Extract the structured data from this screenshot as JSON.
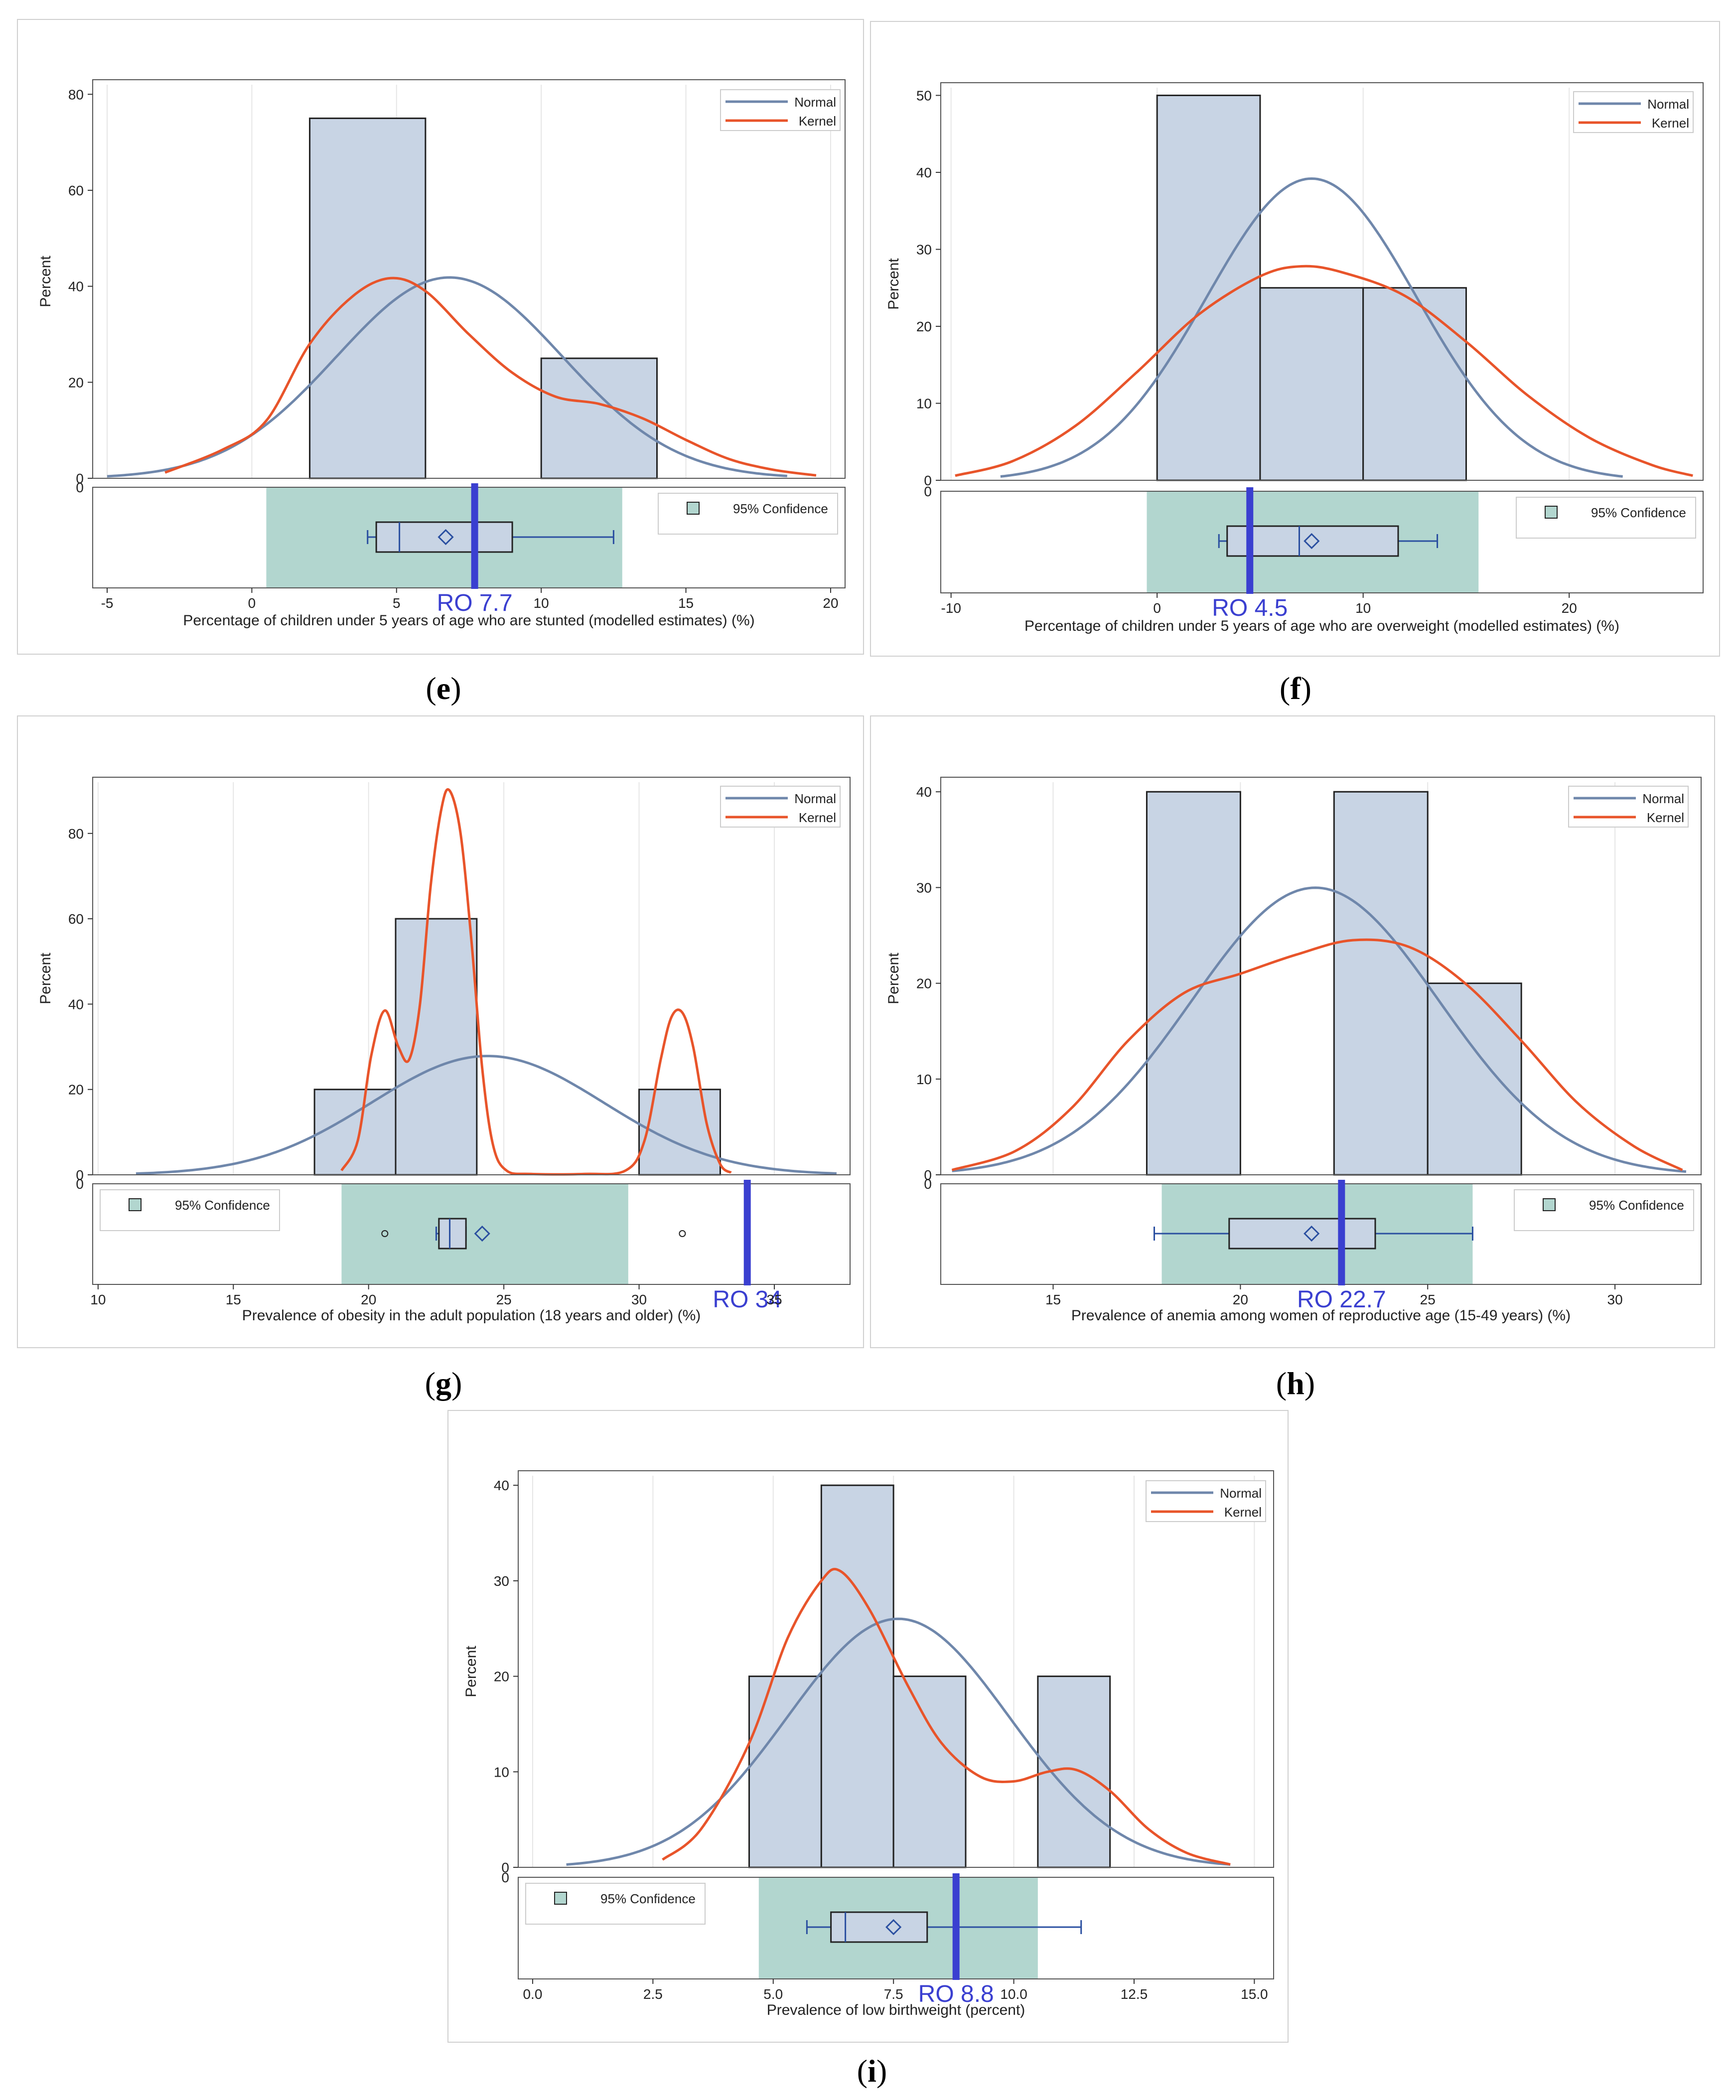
{
  "colors": {
    "bar": "#c8d4e4",
    "normal": "#6f87ab",
    "kernel": "#e8542a",
    "ci": "#b2d6cf",
    "ro": "#3a3fd0",
    "box": "#2a4fa0"
  },
  "chart_data": [
    {
      "type": "bar",
      "panel": "e",
      "caption_letter": "e",
      "xlabel": "Percentage of children under 5 years of age who are stunted (modelled estimates) (%)",
      "ylabel": "Percent",
      "xlim": [
        -5.5,
        20.5
      ],
      "ylim": [
        0,
        82
      ],
      "xticks": [
        -5,
        0,
        5,
        10,
        15,
        20
      ],
      "xtick_labels": [
        "-5",
        "0",
        "5",
        "10",
        "15",
        "20"
      ],
      "yticks": [
        0,
        20,
        40,
        60,
        80
      ],
      "bars": [
        {
          "x0": 2,
          "x1": 6,
          "value": 75
        },
        {
          "x0": 10,
          "x1": 14,
          "value": 25
        }
      ],
      "normal": {
        "mean": 6.83,
        "sd": 3.9,
        "scale": 409,
        "x_range": [
          -5,
          18.5
        ]
      },
      "kernel": [
        [
          -3,
          1.2
        ],
        [
          -1,
          6
        ],
        [
          0.5,
          12
        ],
        [
          2,
          28
        ],
        [
          3.5,
          38
        ],
        [
          4.8,
          41.7
        ],
        [
          6,
          39
        ],
        [
          7.5,
          30
        ],
        [
          9,
          22
        ],
        [
          10.5,
          17
        ],
        [
          12,
          15.5
        ],
        [
          13.5,
          12.5
        ],
        [
          15,
          8
        ],
        [
          16.5,
          4
        ],
        [
          18,
          1.8
        ],
        [
          19.5,
          0.6
        ]
      ],
      "box": {
        "whisker_low": 4,
        "q1": 4.3,
        "median": 5.1,
        "q3": 9,
        "whisker_high": 12.5,
        "mean": 6.7
      },
      "ci": [
        0.5,
        12.8
      ],
      "outliers": [],
      "ro_value": 7.7,
      "ro_label": "RO  7.7",
      "legend_normal": "Normal",
      "legend_kernel": "Kernel",
      "legend_ci": "95% Confidence",
      "ci_legend_position": "right"
    },
    {
      "type": "bar",
      "panel": "f",
      "caption_letter": "f",
      "xlabel": "Percentage of children under 5 years of age who are overweight (modelled estimates) (%)",
      "ylabel": "Percent",
      "xlim": [
        -10.5,
        26.5
      ],
      "ylim": [
        0,
        51
      ],
      "xticks": [
        -10,
        0,
        10,
        20
      ],
      "xtick_labels": [
        "-10",
        "0",
        "10",
        "20"
      ],
      "yticks": [
        0,
        10,
        20,
        30,
        40,
        50
      ],
      "bars": [
        {
          "x0": 0,
          "x1": 5,
          "value": 50
        },
        {
          "x0": 5,
          "x1": 10,
          "value": 25
        },
        {
          "x0": 10,
          "x1": 15,
          "value": 25
        }
      ],
      "normal": {
        "mean": 7.5,
        "sd": 5.1,
        "scale": 501,
        "x_range": [
          -7.6,
          22.6
        ]
      },
      "kernel": [
        [
          -9.8,
          0.6
        ],
        [
          -7,
          2.5
        ],
        [
          -4,
          7
        ],
        [
          -1,
          14
        ],
        [
          2,
          21.5
        ],
        [
          5,
          26.5
        ],
        [
          7,
          27.8
        ],
        [
          9,
          27
        ],
        [
          12,
          24
        ],
        [
          15,
          18
        ],
        [
          18,
          11
        ],
        [
          21,
          5.5
        ],
        [
          24,
          2
        ],
        [
          26,
          0.6
        ]
      ],
      "box": {
        "whisker_low": 3,
        "q1": 3.4,
        "median": 6.9,
        "q3": 11.7,
        "whisker_high": 13.6,
        "mean": 7.5
      },
      "ci": [
        -0.5,
        15.6
      ],
      "outliers": [],
      "ro_value": 4.5,
      "ro_label": "RO  4.5",
      "legend_normal": "Normal",
      "legend_kernel": "Kernel",
      "legend_ci": "95% Confidence",
      "ci_legend_position": "right"
    },
    {
      "type": "bar",
      "panel": "g",
      "caption_letter": "g",
      "xlabel": "Prevalence of obesity in the adult population (18 years and older) (%)",
      "ylabel": "Percent",
      "xlim": [
        9.8,
        37.8
      ],
      "ylim": [
        0,
        92
      ],
      "xticks": [
        10,
        15,
        20,
        25,
        30,
        35
      ],
      "xtick_labels": [
        "10",
        "15",
        "20",
        "25",
        "30",
        "35"
      ],
      "yticks": [
        0,
        20,
        40,
        60,
        80
      ],
      "bars": [
        {
          "x0": 18,
          "x1": 21,
          "value": 20
        },
        {
          "x0": 21,
          "x1": 24,
          "value": 60
        },
        {
          "x0": 30,
          "x1": 33,
          "value": 20
        }
      ],
      "normal": {
        "mean": 24.4,
        "sd": 4.3,
        "scale": 300,
        "x_range": [
          11.4,
          37.3
        ]
      },
      "kernel": [
        [
          19,
          1
        ],
        [
          19.6,
          8
        ],
        [
          20.1,
          28
        ],
        [
          20.6,
          38.5
        ],
        [
          21.1,
          30
        ],
        [
          21.5,
          27
        ],
        [
          21.9,
          40
        ],
        [
          22.3,
          68
        ],
        [
          22.7,
          86
        ],
        [
          23,
          90
        ],
        [
          23.4,
          80
        ],
        [
          23.8,
          55
        ],
        [
          24.2,
          25
        ],
        [
          24.6,
          7
        ],
        [
          25.1,
          1
        ],
        [
          26,
          0.2
        ],
        [
          28,
          0.2
        ],
        [
          29.5,
          1
        ],
        [
          30.2,
          8
        ],
        [
          30.8,
          27
        ],
        [
          31.2,
          37
        ],
        [
          31.6,
          38
        ],
        [
          32,
          30
        ],
        [
          32.5,
          12
        ],
        [
          33,
          2.5
        ],
        [
          33.4,
          0.5
        ]
      ],
      "box": {
        "whisker_low": 22.5,
        "q1": 22.6,
        "median": 23,
        "q3": 23.6,
        "whisker_high": 23.6,
        "mean": 24.2
      },
      "ci": [
        19,
        29.6
      ],
      "outliers": [
        20.6,
        31.6
      ],
      "ro_value": 34,
      "ro_label": "RO  34",
      "legend_normal": "Normal",
      "legend_kernel": "Kernel",
      "legend_ci": "95% Confidence",
      "ci_legend_position": "left"
    },
    {
      "type": "bar",
      "panel": "h",
      "caption_letter": "h",
      "xlabel": "Prevalence of anemia among women of reproductive age (15-49 years) (%)",
      "ylabel": "Percent",
      "xlim": [
        12,
        32.3
      ],
      "ylim": [
        0,
        41
      ],
      "xticks": [
        15,
        20,
        25,
        30
      ],
      "xtick_labels": [
        "15",
        "20",
        "25",
        "30"
      ],
      "yticks": [
        0,
        10,
        20,
        30,
        40
      ],
      "bars": [
        {
          "x0": 17.5,
          "x1": 20,
          "value": 40
        },
        {
          "x0": 22.5,
          "x1": 25,
          "value": 40
        },
        {
          "x0": 25,
          "x1": 27.5,
          "value": 20
        }
      ],
      "normal": {
        "mean": 22,
        "sd": 3.3,
        "scale": 248,
        "x_range": [
          12.3,
          31.9
        ]
      },
      "kernel": [
        [
          12.3,
          0.5
        ],
        [
          14,
          2.5
        ],
        [
          15.5,
          7
        ],
        [
          17,
          14
        ],
        [
          18.5,
          19
        ],
        [
          20,
          21
        ],
        [
          21.5,
          23
        ],
        [
          23,
          24.5
        ],
        [
          24.5,
          23.8
        ],
        [
          26,
          20
        ],
        [
          27.5,
          14
        ],
        [
          29,
          7.5
        ],
        [
          30.5,
          3
        ],
        [
          31.8,
          0.5
        ]
      ],
      "box": {
        "whisker_low": 17.7,
        "q1": 19.7,
        "median": 22.7,
        "q3": 23.6,
        "whisker_high": 26.2,
        "mean": 21.9
      },
      "ci": [
        17.9,
        26.2
      ],
      "outliers": [],
      "ro_value": 22.7,
      "ro_label": "RO  22.7",
      "legend_normal": "Normal",
      "legend_kernel": "Kernel",
      "legend_ci": "95% Confidence",
      "ci_legend_position": "right"
    },
    {
      "type": "bar",
      "panel": "i",
      "caption_letter": "i",
      "xlabel": "Prevalence of low birthweight (percent)",
      "ylabel": "Percent",
      "xlim": [
        -0.3,
        15.4
      ],
      "ylim": [
        0,
        41
      ],
      "xticks": [
        0,
        2.5,
        5,
        7.5,
        10,
        12.5,
        15
      ],
      "xtick_labels": [
        "0.0",
        "2.5",
        "5.0",
        "7.5",
        "10.0",
        "12.5",
        "15.0"
      ],
      "yticks": [
        0,
        10,
        20,
        30,
        40
      ],
      "bars": [
        {
          "x0": 4.5,
          "x1": 6,
          "value": 20
        },
        {
          "x0": 6,
          "x1": 7.5,
          "value": 40
        },
        {
          "x0": 7.5,
          "x1": 9,
          "value": 20
        },
        {
          "x0": 10.5,
          "x1": 12,
          "value": 20
        }
      ],
      "normal": {
        "mean": 7.6,
        "sd": 2.3,
        "scale": 150,
        "x_range": [
          0.7,
          14.5
        ]
      },
      "kernel": [
        [
          2.7,
          0.8
        ],
        [
          3.5,
          4
        ],
        [
          4.5,
          13
        ],
        [
          5.3,
          24
        ],
        [
          6,
          30
        ],
        [
          6.4,
          31
        ],
        [
          7,
          27
        ],
        [
          7.8,
          19
        ],
        [
          8.5,
          13
        ],
        [
          9.3,
          9.5
        ],
        [
          10,
          9
        ],
        [
          10.7,
          10
        ],
        [
          11.3,
          10.2
        ],
        [
          12,
          8
        ],
        [
          12.8,
          4
        ],
        [
          13.6,
          1.5
        ],
        [
          14.5,
          0.3
        ]
      ],
      "box": {
        "whisker_low": 5.7,
        "q1": 6.2,
        "median": 6.5,
        "q3": 8.2,
        "whisker_high": 11.4,
        "mean": 7.5
      },
      "ci": [
        4.7,
        10.5
      ],
      "outliers": [],
      "ro_value": 8.8,
      "ro_label": "RO  8.8",
      "legend_normal": "Normal",
      "legend_kernel": "Kernel",
      "legend_ci": "95% Confidence",
      "ci_legend_position": "left"
    }
  ]
}
